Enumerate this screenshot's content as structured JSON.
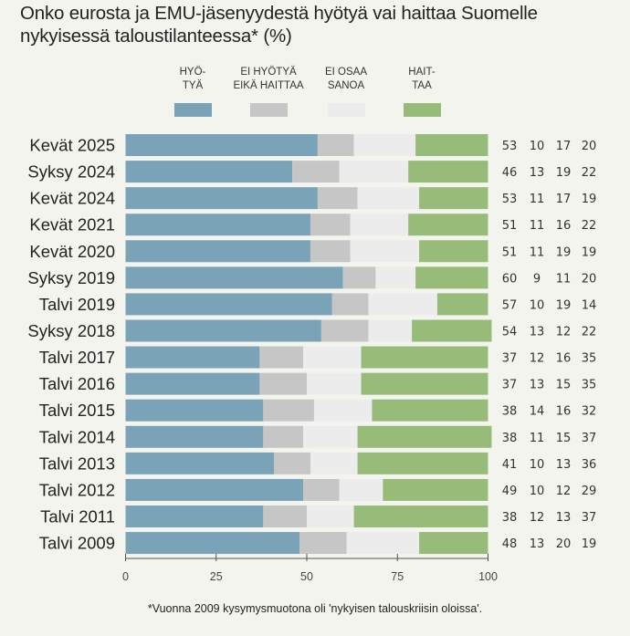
{
  "title": {
    "line1": "Onko eurosta ja EMU-jäsenyydestä hyötyä vai haittaa Suomelle",
    "line2": "nykyisessä taloustilanteessa* (%)"
  },
  "footnote": "*Vuonna 2009 kysymysmuotona oli 'nykyisen talouskriisin oloissa'.",
  "chart_data": {
    "type": "bar",
    "orientation": "horizontal",
    "stacked": true,
    "title": "Onko eurosta ja EMU-jäsenyydestä hyötyä vai haittaa Suomelle nykyisessä taloustilanteessa* (%)",
    "xlabel": "",
    "ylabel": "",
    "xlim": [
      0,
      100
    ],
    "xticks": [
      "0",
      "25",
      "50",
      "75",
      "100"
    ],
    "legend_position": "top",
    "categories": [
      "Kevät 2025",
      "Syksy 2024",
      "Kevät 2024",
      "Kevät 2021",
      "Kevät 2020",
      "Syksy 2019",
      "Talvi 2019",
      "Syksy 2018",
      "Talvi 2017",
      "Talvi 2016",
      "Talvi 2015",
      "Talvi 2014",
      "Talvi 2013",
      "Talvi 2012",
      "Talvi 2011",
      "Talvi 2009"
    ],
    "series": [
      {
        "name": "HYÖ-\nTYÄ",
        "color": "#7aa3b8",
        "values": [
          53,
          46,
          53,
          51,
          51,
          60,
          57,
          54,
          37,
          37,
          38,
          38,
          41,
          49,
          38,
          48
        ]
      },
      {
        "name": "EI HYÖTYÄ\nEIKÄ HAITTAA",
        "color": "#c6c6c6",
        "values": [
          10,
          13,
          11,
          11,
          11,
          9,
          10,
          13,
          12,
          13,
          14,
          11,
          10,
          10,
          12,
          13
        ]
      },
      {
        "name": "EI OSAA\nSANOA",
        "color": "#ececec",
        "values": [
          17,
          19,
          17,
          16,
          19,
          11,
          19,
          12,
          16,
          15,
          16,
          15,
          13,
          12,
          13,
          20
        ]
      },
      {
        "name": "HAIT-\nTAA",
        "color": "#97bb78",
        "values": [
          20,
          22,
          19,
          22,
          19,
          20,
          14,
          22,
          35,
          35,
          32,
          37,
          36,
          29,
          37,
          19
        ]
      }
    ]
  }
}
